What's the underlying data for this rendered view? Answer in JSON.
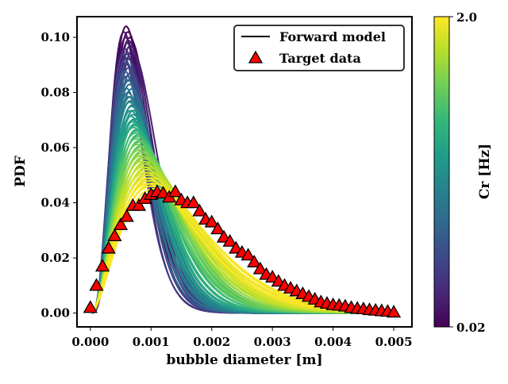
{
  "chart_data": {
    "type": "line",
    "xlabel": "bubble diameter [m]",
    "ylabel": "PDF",
    "xlim": [
      -0.00022,
      0.0053
    ],
    "ylim": [
      -0.005,
      0.1075
    ],
    "xticks": [
      "0.000",
      "0.001",
      "0.002",
      "0.003",
      "0.004",
      "0.005"
    ],
    "xtick_values": [
      0,
      0.001,
      0.002,
      0.003,
      0.004,
      0.005
    ],
    "yticks": [
      "0.00",
      "0.02",
      "0.04",
      "0.06",
      "0.08",
      "0.10"
    ],
    "ytick_values": [
      0,
      0.02,
      0.04,
      0.06,
      0.08,
      0.1
    ],
    "grid": false,
    "legend": {
      "placement": "top-right",
      "entries": [
        "Forward model",
        "Target data"
      ]
    },
    "colorbar": {
      "label": "Cr [Hz]",
      "scale": "log",
      "min_label": "0.02",
      "max_label": "2.0",
      "range": [
        0.02,
        2.0
      ],
      "colormap": "viridis",
      "colors": [
        "#440154",
        "#482878",
        "#3e4989",
        "#31688e",
        "#26828e",
        "#1f9e89",
        "#35b779",
        "#6ece58",
        "#b5de2b",
        "#fde725"
      ]
    },
    "forward_model": {
      "name": "Forward model",
      "curves": [
        {
          "cr": 0.02,
          "peak_x": 0.00062,
          "peak_pdf": 0.102
        },
        {
          "cr": 0.025,
          "peak_x": 0.00058,
          "peak_pdf": 0.1
        },
        {
          "cr": 0.03,
          "peak_x": 0.00066,
          "peak_pdf": 0.097
        },
        {
          "cr": 0.04,
          "peak_x": 0.0006,
          "peak_pdf": 0.094
        },
        {
          "cr": 0.05,
          "peak_x": 0.00057,
          "peak_pdf": 0.092
        },
        {
          "cr": 0.06,
          "peak_x": 0.00063,
          "peak_pdf": 0.089
        },
        {
          "cr": 0.08,
          "peak_x": 0.0006,
          "peak_pdf": 0.086
        },
        {
          "cr": 0.1,
          "peak_x": 0.00065,
          "peak_pdf": 0.083
        },
        {
          "cr": 0.12,
          "peak_x": 0.00062,
          "peak_pdf": 0.08
        },
        {
          "cr": 0.15,
          "peak_x": 0.00066,
          "peak_pdf": 0.077
        },
        {
          "cr": 0.18,
          "peak_x": 0.00068,
          "peak_pdf": 0.075
        },
        {
          "cr": 0.22,
          "peak_x": 0.0007,
          "peak_pdf": 0.072
        },
        {
          "cr": 0.27,
          "peak_x": 0.0007,
          "peak_pdf": 0.07
        },
        {
          "cr": 0.33,
          "peak_x": 0.00073,
          "peak_pdf": 0.068
        },
        {
          "cr": 0.4,
          "peak_x": 0.00075,
          "peak_pdf": 0.066
        },
        {
          "cr": 0.5,
          "peak_x": 0.00078,
          "peak_pdf": 0.064
        },
        {
          "cr": 0.6,
          "peak_x": 0.0008,
          "peak_pdf": 0.062
        },
        {
          "cr": 0.7,
          "peak_x": 0.00082,
          "peak_pdf": 0.06
        },
        {
          "cr": 0.85,
          "peak_x": 0.00085,
          "peak_pdf": 0.058
        },
        {
          "cr": 1.0,
          "peak_x": 0.00088,
          "peak_pdf": 0.056
        },
        {
          "cr": 1.2,
          "peak_x": 0.0009,
          "peak_pdf": 0.054
        },
        {
          "cr": 1.4,
          "peak_x": 0.00092,
          "peak_pdf": 0.052
        },
        {
          "cr": 1.6,
          "peak_x": 0.00095,
          "peak_pdf": 0.05
        },
        {
          "cr": 1.8,
          "peak_x": 0.00098,
          "peak_pdf": 0.048
        },
        {
          "cr": 2.0,
          "peak_x": 0.001,
          "peak_pdf": 0.046
        }
      ]
    },
    "target_data": {
      "name": "Target data",
      "marker": "triangle",
      "color": "#ff0000",
      "x": [
        0,
        0.0001,
        0.0002,
        0.0003,
        0.0004,
        0.0005,
        0.0006,
        0.0007,
        0.0008,
        0.0009,
        0.001,
        0.0011,
        0.0012,
        0.0013,
        0.0014,
        0.0015,
        0.0016,
        0.0017,
        0.0018,
        0.0019,
        0.002,
        0.0021,
        0.0022,
        0.0023,
        0.0024,
        0.0025,
        0.0026,
        0.0027,
        0.0028,
        0.0029,
        0.003,
        0.0031,
        0.0032,
        0.0033,
        0.0034,
        0.0035,
        0.0036,
        0.0037,
        0.0038,
        0.0039,
        0.004,
        0.0041,
        0.0042,
        0.0043,
        0.0044,
        0.0045,
        0.0046,
        0.0047,
        0.0048,
        0.0049,
        0.005
      ],
      "y": [
        0.002,
        0.01,
        0.017,
        0.0235,
        0.028,
        0.032,
        0.035,
        0.039,
        0.039,
        0.0415,
        0.043,
        0.044,
        0.0435,
        0.042,
        0.044,
        0.041,
        0.04,
        0.04,
        0.037,
        0.034,
        0.033,
        0.0305,
        0.0275,
        0.026,
        0.0235,
        0.022,
        0.021,
        0.0185,
        0.016,
        0.014,
        0.013,
        0.0115,
        0.01,
        0.009,
        0.008,
        0.007,
        0.006,
        0.005,
        0.004,
        0.0035,
        0.003,
        0.0028,
        0.0025,
        0.002,
        0.0017,
        0.0015,
        0.0012,
        0.001,
        0.0008,
        0.0006,
        0.0003
      ]
    }
  }
}
